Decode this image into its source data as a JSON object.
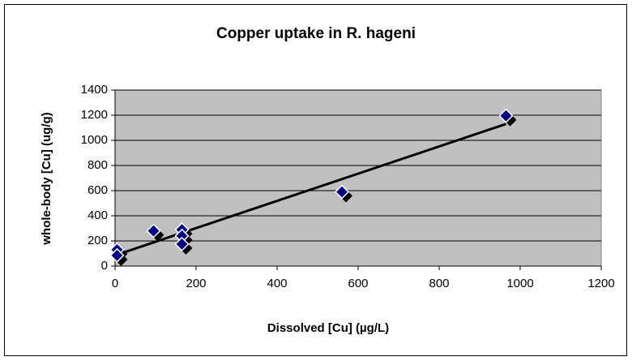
{
  "chart_data": {
    "type": "scatter",
    "title": "Copper uptake in R. hageni",
    "x_label": "Dissolved [Cu] (µg/L)",
    "y_label": "whole-body [Cu] (ug/g)",
    "series": [
      {
        "color": "#000080",
        "x": [
          5,
          5,
          95,
          165,
          165,
          165,
          560,
          965
        ],
        "values": [
          130,
          85,
          280,
          290,
          240,
          175,
          590,
          1195
        ]
      }
    ],
    "trendline": "linear",
    "xlim": [
      0,
      1200
    ],
    "xticks": [
      0,
      200,
      400,
      600,
      800,
      1000,
      1200
    ],
    "ylim": [
      0,
      1400
    ],
    "yticks": [
      0,
      200,
      400,
      600,
      800,
      1000,
      1200,
      1400
    ],
    "grid": true
  }
}
